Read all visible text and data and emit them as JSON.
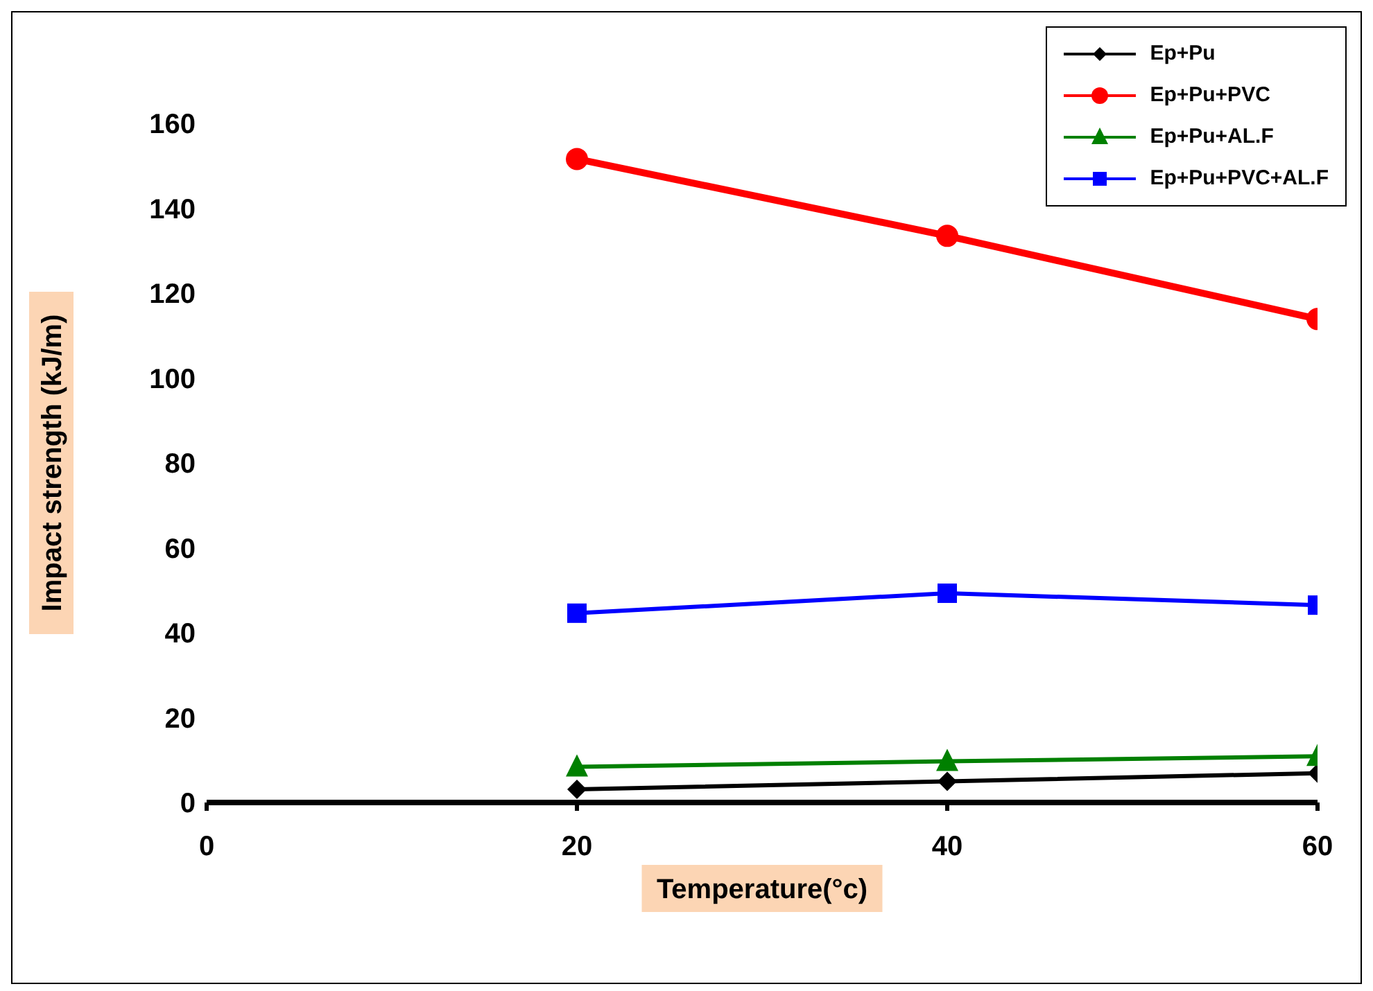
{
  "chart_data": {
    "type": "line",
    "xlabel": "Temperature(°c)",
    "ylabel": "Impact strength (kJ/m)",
    "x": [
      20,
      40,
      60
    ],
    "series": [
      {
        "name": "Ep+Pu",
        "color": "#000000",
        "marker": "diamond",
        "values": [
          3.1,
          5.0,
          6.9
        ]
      },
      {
        "name": "Ep+Pu+PVC",
        "color": "#ff0000",
        "marker": "circle",
        "values": [
          151.6,
          133.5,
          113.9
        ]
      },
      {
        "name": "Ep+Pu+AL.F",
        "color": "#008000",
        "marker": "triangle",
        "values": [
          8.4,
          9.7,
          10.9
        ]
      },
      {
        "name": "Ep+Pu+PVC+AL.F",
        "color": "#0000ff",
        "marker": "square",
        "values": [
          44.6,
          49.3,
          46.5
        ]
      }
    ],
    "xlim": [
      0,
      60
    ],
    "xticks": [
      0,
      20,
      40,
      60
    ],
    "ylim": [
      0,
      160
    ],
    "yticks": [
      0,
      20,
      40,
      60,
      80,
      100,
      120,
      140,
      160
    ],
    "grid": false,
    "legend": "top right"
  }
}
